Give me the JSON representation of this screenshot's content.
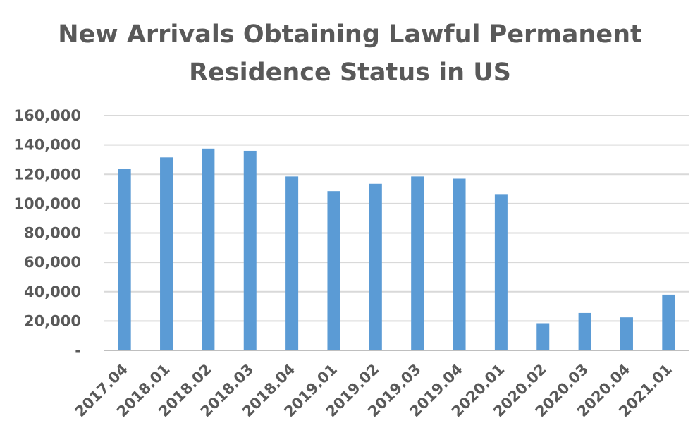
{
  "chart_data": {
    "type": "bar",
    "title_lines": [
      "New Arrivals Obtaining Lawful Permanent",
      "Residence Status in US"
    ],
    "categories": [
      "2017.04",
      "2018.01",
      "2018.02",
      "2018.03",
      "2018.04",
      "2019.01",
      "2019.02",
      "2019.03",
      "2019.04",
      "2020.01",
      "2020.02",
      "2020.03",
      "2020.04",
      "2021.01"
    ],
    "values": [
      123500,
      131500,
      137500,
      136000,
      118500,
      108500,
      113500,
      118500,
      117000,
      106500,
      18500,
      25500,
      22500,
      38000
    ],
    "ylim": [
      0,
      160000
    ],
    "yticks": [
      0,
      20000,
      40000,
      60000,
      80000,
      100000,
      120000,
      140000,
      160000
    ],
    "ytick_labels": [
      "-",
      "20,000",
      "40,000",
      "60,000",
      "80,000",
      "100,000",
      "120,000",
      "140,000",
      "160,000"
    ],
    "xlabel": "",
    "ylabel": "",
    "grid": true,
    "legend": "none",
    "colors": {
      "bar": "#5B9BD5",
      "grid": "#D9D9D9",
      "text": "#595959",
      "axis": "#BFBFBF"
    }
  }
}
